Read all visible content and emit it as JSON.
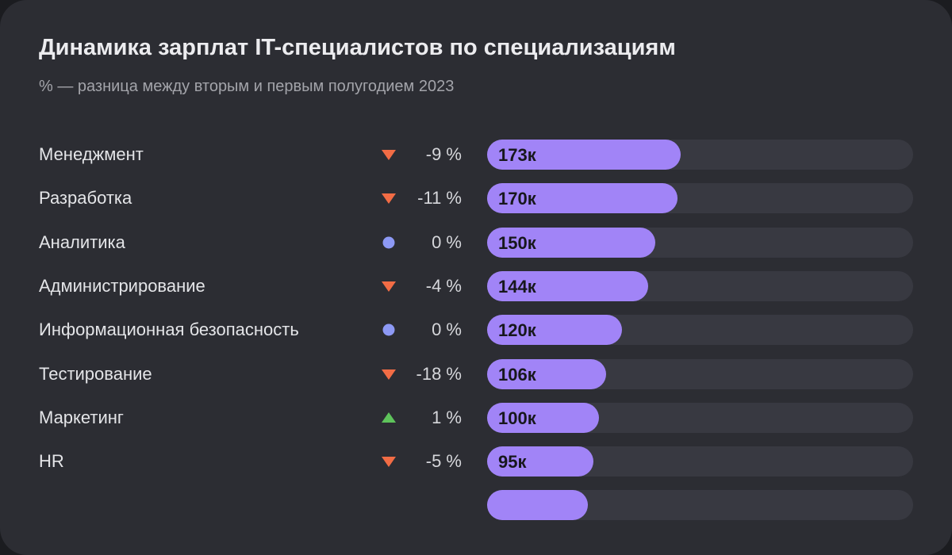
{
  "chart_data": {
    "type": "bar",
    "title": "Динамика зарплат IT-специалистов по специализациям",
    "subtitle": "% — разница между вторым и первым полугодием 2023",
    "xlim": [
      0,
      380
    ],
    "colors": {
      "bar": "#a184f7",
      "track": "#383941",
      "down": "#f26c45",
      "up": "#5ec35b",
      "neutral": "#8d99f5"
    },
    "rows": [
      {
        "category": "Менеджмент",
        "value": 173,
        "value_label": "173к",
        "change": -9,
        "change_label": "-9 %",
        "trend": "down"
      },
      {
        "category": "Разработка",
        "value": 170,
        "value_label": "170к",
        "change": -11,
        "change_label": "-11 %",
        "trend": "down"
      },
      {
        "category": "Аналитика",
        "value": 150,
        "value_label": "150к",
        "change": 0,
        "change_label": "0 %",
        "trend": "neutral"
      },
      {
        "category": "Администрирование",
        "value": 144,
        "value_label": "144к",
        "change": -4,
        "change_label": "-4 %",
        "trend": "down"
      },
      {
        "category": "Информационная безопасность",
        "value": 120,
        "value_label": "120к",
        "change": 0,
        "change_label": "0 %",
        "trend": "neutral"
      },
      {
        "category": "Тестирование",
        "value": 106,
        "value_label": "106к",
        "change": -18,
        "change_label": "-18 %",
        "trend": "down"
      },
      {
        "category": "Маркетинг",
        "value": 100,
        "value_label": "100к",
        "change": 1,
        "change_label": "1 %",
        "trend": "up"
      },
      {
        "category": "HR",
        "value": 95,
        "value_label": "95к",
        "change": -5,
        "change_label": "-5 %",
        "trend": "down"
      },
      {
        "category": "",
        "value": 90,
        "value_label": "",
        "change_label": "",
        "trend": ""
      }
    ]
  }
}
